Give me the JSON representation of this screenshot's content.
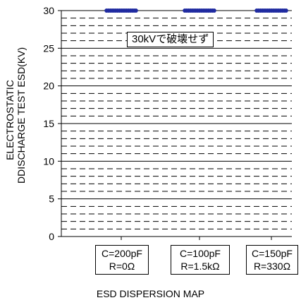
{
  "chart_data": {
    "type": "scatter",
    "ylabel": [
      "ELECTROSTATIC",
      "DDISCHARGE TEST ESD(KV)"
    ],
    "xlabel": "ESD DISPERSION MAP",
    "ylim": [
      0,
      30
    ],
    "yticks": [
      "0",
      "5",
      "10",
      "15",
      "20",
      "25",
      "30"
    ],
    "grid": "major solid every 5, minor dashed every 1",
    "categories": [
      [
        "C=200pF",
        "R=0Ω"
      ],
      [
        "C=100pF",
        "R=1.5kΩ"
      ],
      [
        "C=150pF",
        "R=330Ω"
      ]
    ],
    "series": [
      {
        "values": [
          30,
          30,
          30
        ],
        "color": "#1f2aa0"
      }
    ],
    "annotation": "30kVで破壊せず"
  }
}
